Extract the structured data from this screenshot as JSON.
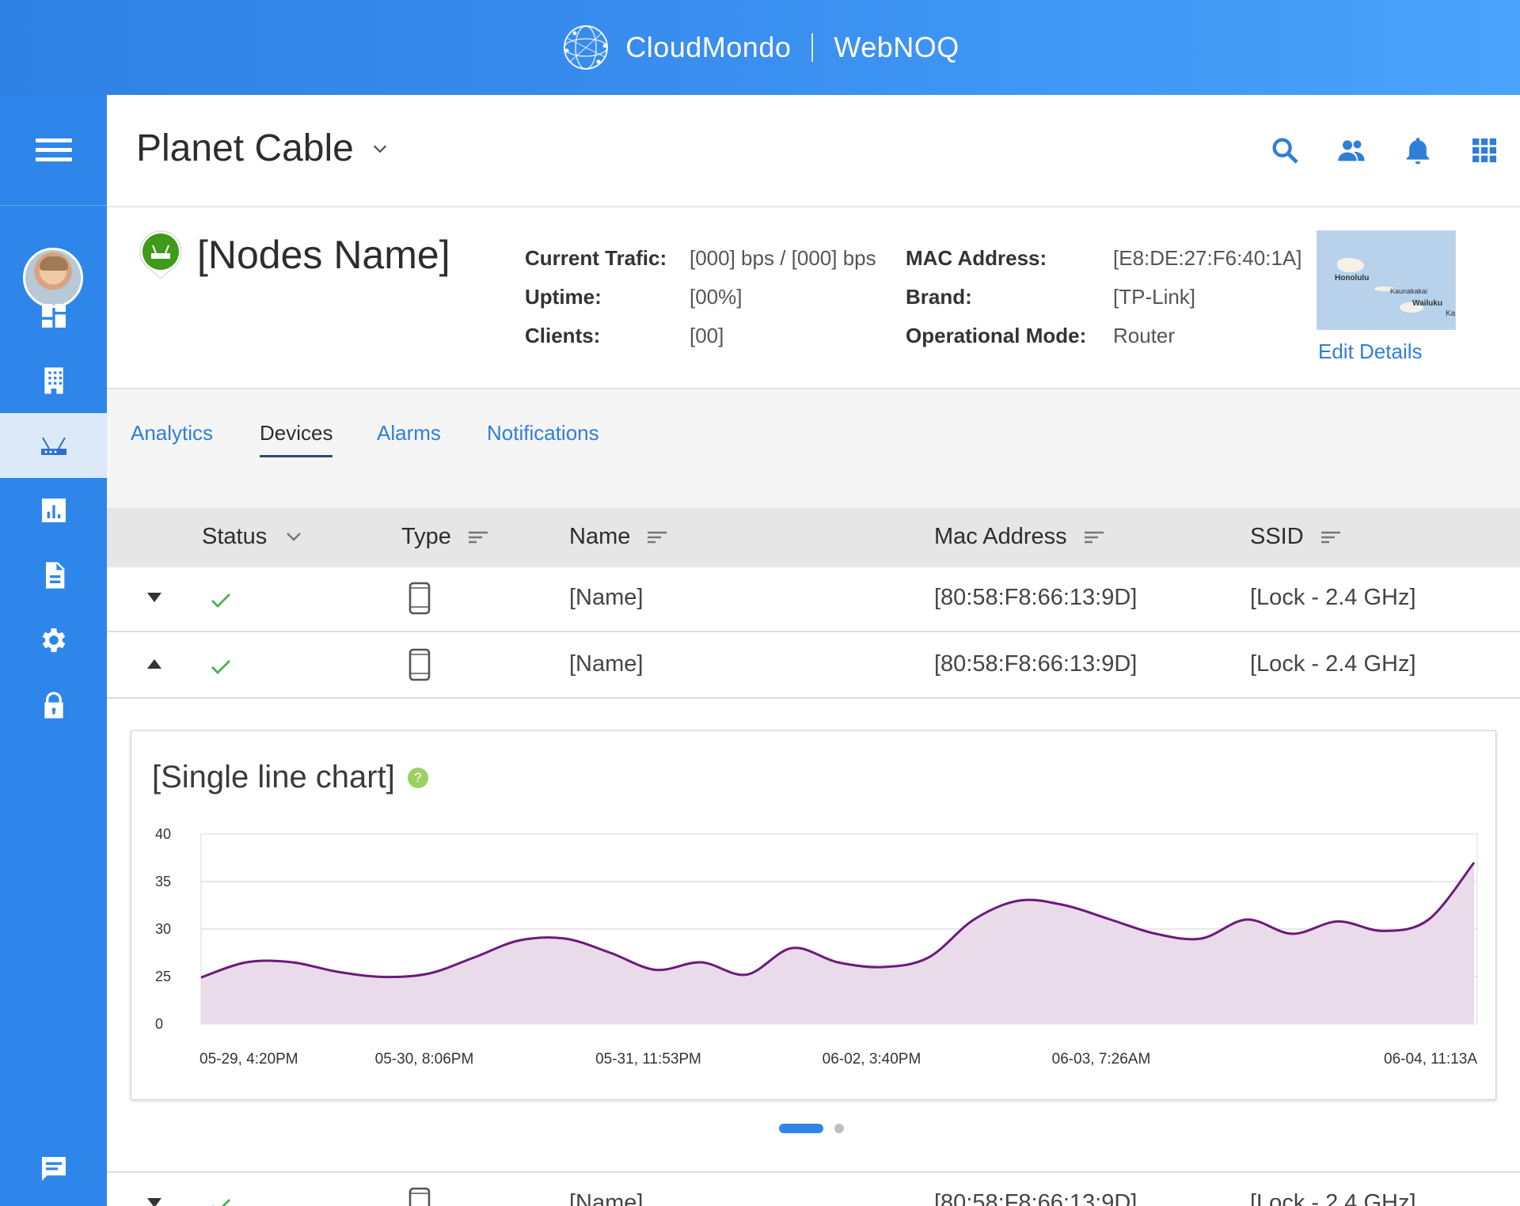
{
  "brand": {
    "name": "CloudMondo",
    "product": "WebNOQ"
  },
  "header": {
    "title": "Planet Cable"
  },
  "node": {
    "name": "[Nodes Name]",
    "fields_left": [
      {
        "label": "Current Trafic:",
        "value": "[000] bps / [000] bps"
      },
      {
        "label": "Uptime:",
        "value": "[00%]"
      },
      {
        "label": "Clients:",
        "value": "[00]"
      }
    ],
    "fields_right": [
      {
        "label": "MAC Address:",
        "value": "[E8:DE:27:F6:40:1A]"
      },
      {
        "label": "Brand:",
        "value": "[TP-Link]"
      },
      {
        "label": "Operational Mode:",
        "value": "Router"
      }
    ],
    "map_labels": [
      "Honolulu",
      "Kaunakakai",
      "Wailuku",
      "Ka"
    ],
    "edit_label": "Edit Details"
  },
  "tabs": [
    {
      "label": "Analytics",
      "active": false
    },
    {
      "label": "Devices",
      "active": true
    },
    {
      "label": "Alarms",
      "active": false
    },
    {
      "label": "Notifications",
      "active": false
    }
  ],
  "table": {
    "columns": [
      "Status",
      "Type",
      "Name",
      "Mac Address",
      "SSID"
    ],
    "rows": [
      {
        "expanded": false,
        "status": "ok",
        "type": "phone-icon",
        "name": "[Name]",
        "mac": "[80:58:F8:66:13:9D]",
        "ssid": "[Lock - 2.4 GHz]"
      },
      {
        "expanded": true,
        "status": "ok",
        "type": "phone-icon",
        "name": "[Name]",
        "mac": "[80:58:F8:66:13:9D]",
        "ssid": "[Lock - 2.4 GHz]"
      },
      {
        "expanded": false,
        "status": "ok",
        "type": "phone-icon",
        "name": "[Name]",
        "mac": "[80:58:F8:66:13:9D]",
        "ssid": "[Lock - 2.4 GHz]"
      }
    ]
  },
  "chart_card": {
    "title": "[Single line chart]",
    "help": "?"
  },
  "chart_data": {
    "type": "area",
    "title": "[Single line chart]",
    "xlabel": "",
    "ylabel": "",
    "y_ticks": [
      "40",
      "35",
      "30",
      "25",
      "0"
    ],
    "x_tick_labels": [
      "05-29, 4:20PM",
      "05-30, 8:06PM",
      "05-31, 11:53PM",
      "06-02, 3:40PM",
      "06-03, 7:26AM",
      "06-04, 11:13A"
    ],
    "series": [
      {
        "values": [
          24.5,
          26.5,
          26.5,
          25.5,
          24.8,
          25.3,
          27.0,
          28.8,
          29.0,
          27.5,
          25.7,
          26.5,
          25.2,
          28.0,
          26.5,
          26.0,
          27.0,
          31.0,
          33.0,
          32.5,
          31.0,
          29.5,
          29.0,
          31.0,
          29.5,
          30.8,
          29.8,
          31.0,
          37.0
        ]
      }
    ],
    "grid": true,
    "colors": {
      "line": "#6c1a7a",
      "fill": "#e9dbea"
    }
  },
  "pagination": {
    "pages": 2,
    "active": 0
  },
  "colors": {
    "accent": "#2f86ea",
    "link": "#2f7ed8",
    "ok": "#4caf50",
    "node_pin": "#3f9a1a"
  }
}
